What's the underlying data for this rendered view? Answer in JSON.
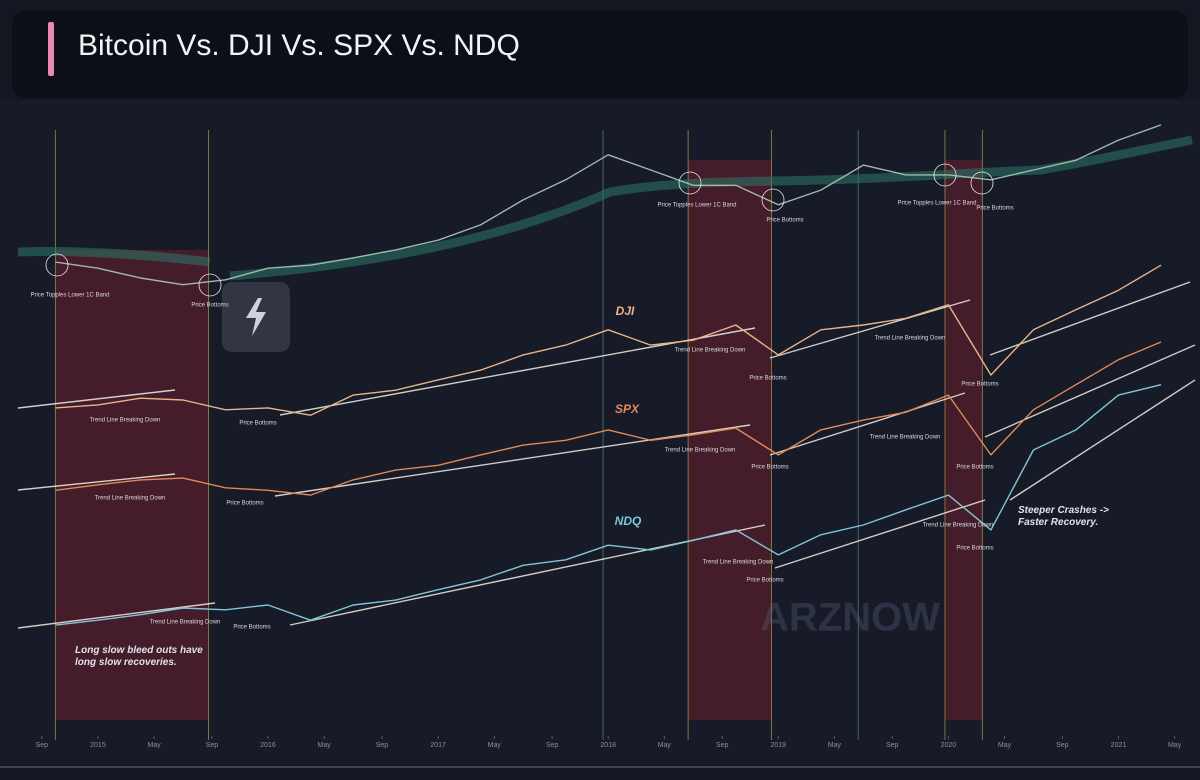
{
  "chart_data": {
    "type": "line",
    "title": "Bitcoin Vs. DJI Vs. SPX Vs. NDQ",
    "x": [
      2014.75,
      2015,
      2015.25,
      2015.5,
      2015.75,
      2016,
      2016.25,
      2016.5,
      2016.75,
      2017,
      2017.25,
      2017.5,
      2017.75,
      2018,
      2018.25,
      2018.5,
      2018.75,
      2019,
      2019.25,
      2019.5,
      2019.75,
      2020,
      2020.25,
      2020.5,
      2020.75,
      2021,
      2021.25
    ],
    "series": [
      {
        "color": "#9fb8a8",
        "values": [
          76.7,
          75.7,
          74.1,
          73.0,
          73.8,
          75.7,
          76.2,
          77.4,
          78.7,
          80.3,
          82.8,
          86.9,
          90.2,
          94.3,
          91.8,
          89.3,
          89.3,
          86.1,
          88.5,
          92.6,
          91.0,
          91.0,
          90.2,
          91.8,
          93.4,
          96.7,
          99.2
        ]
      },
      {
        "name": "DJI",
        "color": "#e8b48a",
        "values": [
          52.8,
          53.3,
          54.4,
          54.1,
          52.5,
          52.8,
          51.6,
          54.9,
          55.7,
          57.4,
          59.0,
          61.5,
          63.1,
          65.6,
          63.1,
          63.9,
          66.4,
          61.5,
          65.6,
          66.4,
          67.5,
          69.7,
          58.2,
          65.6,
          68.9,
          72.1,
          76.2
        ]
      },
      {
        "name": "SPX",
        "color": "#e0895a",
        "values": [
          39.3,
          40.2,
          41.0,
          41.3,
          39.7,
          39.3,
          38.5,
          41.0,
          42.6,
          43.4,
          45.1,
          46.7,
          47.5,
          49.2,
          47.5,
          48.4,
          49.5,
          45.1,
          49.2,
          50.8,
          52.1,
          54.9,
          45.1,
          52.5,
          56.6,
          60.7,
          63.6
        ]
      },
      {
        "name": "NDQ",
        "color": "#7fc6d6",
        "values": [
          17.2,
          18.0,
          18.9,
          20.0,
          19.7,
          20.5,
          18.0,
          20.5,
          21.3,
          23.0,
          24.6,
          27.0,
          27.9,
          30.3,
          29.5,
          31.1,
          32.8,
          28.7,
          32.0,
          33.6,
          36.1,
          38.5,
          32.8,
          45.9,
          49.2,
          54.9,
          56.6
        ]
      }
    ],
    "xlim": [
      2014.53,
      2021.45
    ],
    "ylim": [
      0,
      100
    ],
    "xticks": [
      {
        "value": 2014.67,
        "label": "Sep"
      },
      2015,
      {
        "value": 2015.33,
        "label": "May"
      },
      {
        "value": 2015.67,
        "label": "Sep"
      },
      2016,
      {
        "value": 2016.33,
        "label": "May"
      },
      {
        "value": 2016.67,
        "label": "Sep"
      },
      2017,
      {
        "value": 2017.33,
        "label": "May"
      },
      {
        "value": 2017.67,
        "label": "Sep"
      },
      2018,
      {
        "value": 2018.33,
        "label": "May"
      },
      {
        "value": 2018.67,
        "label": "Sep"
      },
      2019,
      {
        "value": 2019.33,
        "label": "May"
      },
      {
        "value": 2019.67,
        "label": "Sep"
      },
      2020,
      {
        "value": 2020.33,
        "label": "May"
      },
      {
        "value": 2020.67,
        "label": "Sep"
      },
      2021,
      {
        "value": 2021.33,
        "label": "May"
      }
    ],
    "highlight_ranges": [
      [
        2014.75,
        2015.65
      ],
      [
        2018.47,
        2018.96
      ],
      [
        2019.98,
        2020.2
      ]
    ],
    "vertical_lines": [
      2014.75,
      2015.65,
      2017.97,
      2018.47,
      2018.96,
      2019.47,
      2019.98,
      2020.2
    ],
    "annotations": [
      "Price Topples Lower 1C Band",
      "Price Bottoms",
      "Price Topples Lower 1C Band",
      "Price Bottoms",
      "Price Topples Lower 1C Band",
      "Price Bottoms",
      "Trend Line Breaking Down",
      "Price Bottoms",
      "Trend Line Breaking Down",
      "Price Bottoms",
      "Trend Line Breaking Down",
      "Price Bottoms",
      "Trend Line Breaking Down",
      "Price Bottoms",
      "Trend Line Breaking Down",
      "Price Bottoms",
      "Trend Line Breaking Down",
      "Price Bottoms",
      "Trend Line Breaking Down",
      "Price Bottoms",
      "Trend Line Breaking Down",
      "Price Bottoms",
      "Trend Line Breaking Down",
      "Price Bottoms",
      "Long slow bleed outs have long slow recoveries.",
      "Steeper Crashes -> Faster Recovery."
    ],
    "watermark": "ARZNOW"
  }
}
